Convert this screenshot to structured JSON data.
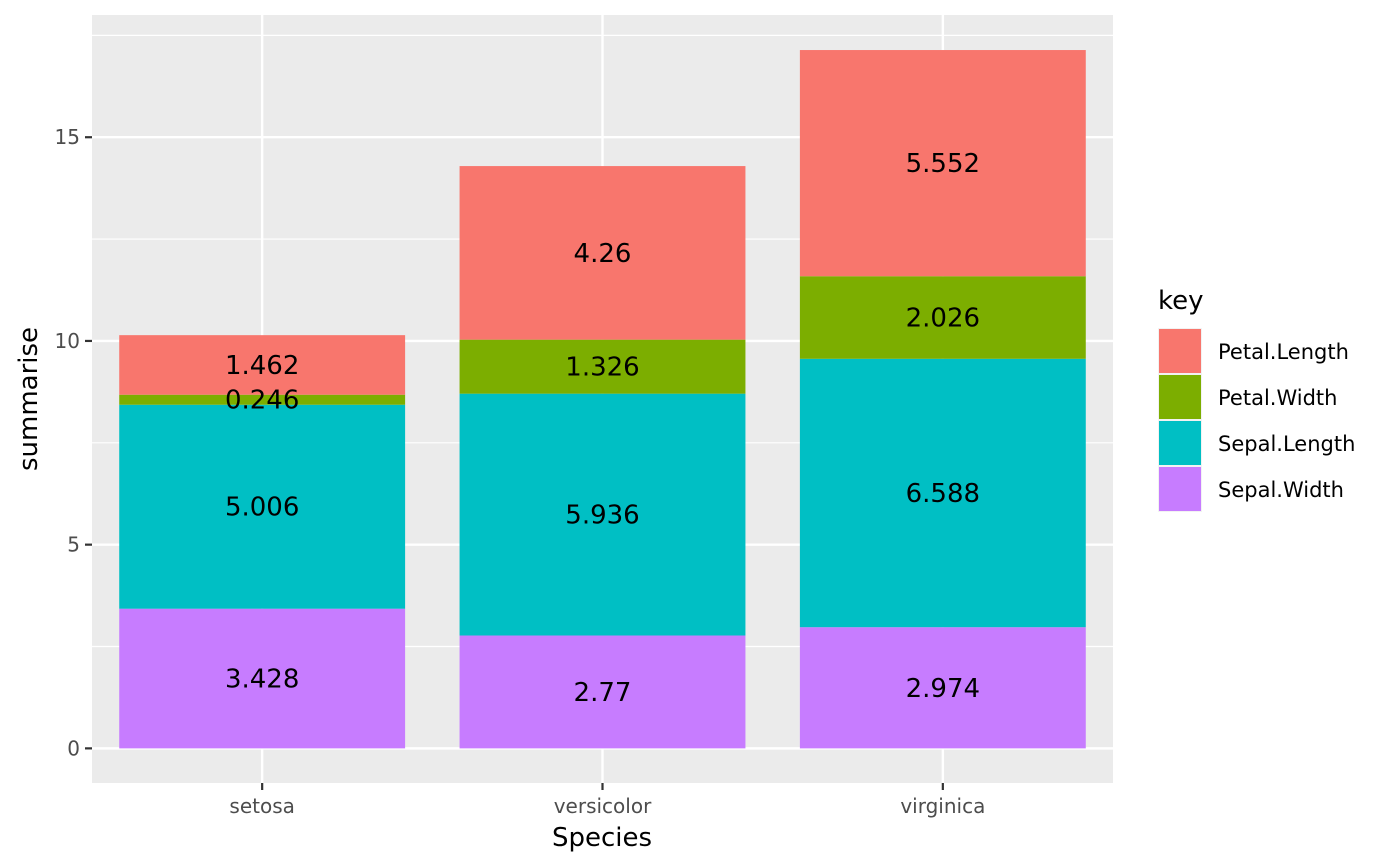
{
  "chart_data": {
    "type": "bar",
    "stacked": true,
    "categories": [
      "setosa",
      "versicolor",
      "virginica"
    ],
    "series": [
      {
        "name": "Sepal.Width",
        "values": [
          3.428,
          2.77,
          2.974
        ],
        "color": "#C77CFF"
      },
      {
        "name": "Sepal.Length",
        "values": [
          5.006,
          5.936,
          6.588
        ],
        "color": "#00BFC4"
      },
      {
        "name": "Petal.Width",
        "values": [
          0.246,
          1.326,
          2.026
        ],
        "color": "#7CAE00"
      },
      {
        "name": "Petal.Length",
        "values": [
          1.462,
          4.26,
          5.552
        ],
        "color": "#F8766D"
      }
    ],
    "data_labels": [
      [
        "3.428",
        "2.77",
        "2.974"
      ],
      [
        "5.006",
        "5.936",
        "6.588"
      ],
      [
        "0.246",
        "1.326",
        "2.026"
      ],
      [
        "1.462",
        "4.26",
        "5.552"
      ]
    ],
    "legend_order": [
      "Petal.Length",
      "Petal.Width",
      "Sepal.Length",
      "Sepal.Width"
    ],
    "legend_title": "key",
    "legend_position": "right",
    "xlabel": "Species",
    "ylabel": "summarise",
    "ylim": [
      -0.85,
      18
    ],
    "yticks": [
      0,
      5,
      10,
      15
    ],
    "ytick_labels": [
      "0",
      "5",
      "10",
      "15"
    ],
    "grid": true,
    "panel_color": "#EBEBEB"
  }
}
